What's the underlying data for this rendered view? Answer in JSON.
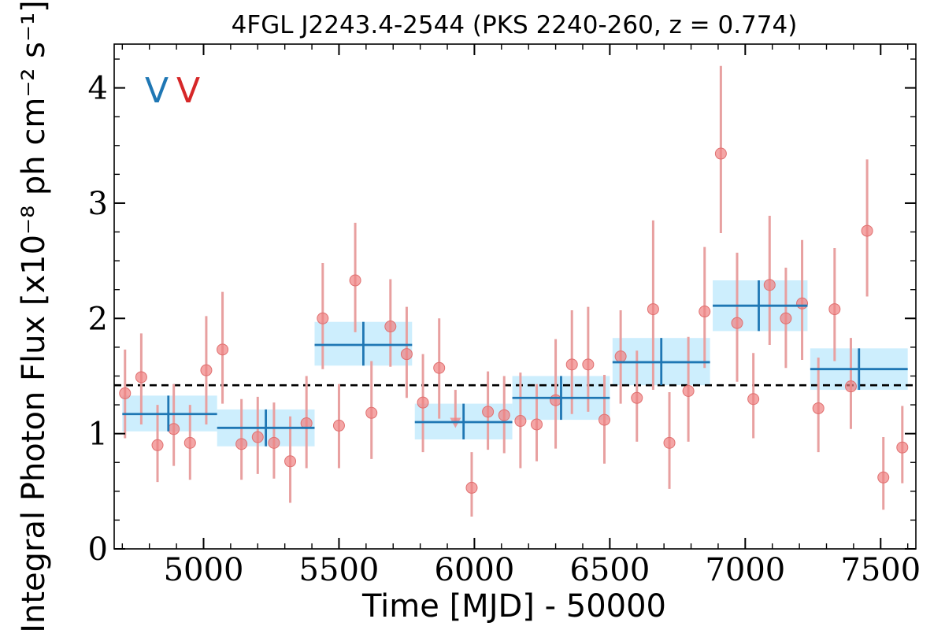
{
  "chart_data": {
    "type": "scatter",
    "title": "4FGL J2243.4-2544 (PKS 2240-260, z = 0.774)",
    "xlabel": "Time [MJD] - 50000",
    "ylabel": "Integral Photon Flux [x10⁻⁸ ph cm⁻² s⁻¹]",
    "xlim": [
      4670,
      7630
    ],
    "ylim": [
      0,
      4.38
    ],
    "x_ticks": [
      5000,
      5500,
      6000,
      6500,
      7000,
      7500
    ],
    "x_tick_labels": [
      "5000",
      "5500",
      "6000",
      "6500",
      "7000",
      "7500"
    ],
    "y_ticks": [
      0,
      1,
      2,
      3,
      4
    ],
    "y_tick_labels": [
      "0",
      "1",
      "2",
      "3",
      "4"
    ],
    "legend": [
      {
        "label": "V",
        "color": "#1f77b4"
      },
      {
        "label": "V",
        "color": "#d62728"
      }
    ],
    "mean_flux": 1.42,
    "series": [
      {
        "color": "#1f77b4",
        "band_color": "#cdeefd",
        "points": [
          {
            "x": 4870,
            "x_lo": 4700,
            "x_hi": 5050,
            "y": 1.17,
            "y_lo": 1.02,
            "y_hi": 1.33
          },
          {
            "x": 5230,
            "x_lo": 5050,
            "x_hi": 5410,
            "y": 1.05,
            "y_lo": 0.89,
            "y_hi": 1.21
          },
          {
            "x": 5590,
            "x_lo": 5410,
            "x_hi": 5770,
            "y": 1.77,
            "y_lo": 1.59,
            "y_hi": 1.97
          },
          {
            "x": 5960,
            "x_lo": 5780,
            "x_hi": 6140,
            "y": 1.1,
            "y_lo": 0.95,
            "y_hi": 1.26
          },
          {
            "x": 6320,
            "x_lo": 6140,
            "x_hi": 6500,
            "y": 1.31,
            "y_lo": 1.12,
            "y_hi": 1.5
          },
          {
            "x": 6690,
            "x_lo": 6510,
            "x_hi": 6870,
            "y": 1.62,
            "y_lo": 1.42,
            "y_hi": 1.83
          },
          {
            "x": 7050,
            "x_lo": 6880,
            "x_hi": 7230,
            "y": 2.11,
            "y_lo": 1.89,
            "y_hi": 2.33
          },
          {
            "x": 7420,
            "x_lo": 7240,
            "x_hi": 7600,
            "y": 1.56,
            "y_lo": 1.38,
            "y_hi": 1.74
          }
        ]
      },
      {
        "color": "#f08080",
        "errbar_color": "#e8a0a0",
        "points": [
          {
            "x": 4710,
            "y": 1.35,
            "y_lo": 0.96,
            "y_hi": 1.73
          },
          {
            "x": 4770,
            "y": 1.49,
            "y_lo": 1.08,
            "y_hi": 1.87
          },
          {
            "x": 4830,
            "y": 0.9,
            "y_lo": 0.58,
            "y_hi": 1.25
          },
          {
            "x": 4890,
            "y": 1.04,
            "y_lo": 0.72,
            "y_hi": 1.43
          },
          {
            "x": 4950,
            "y": 0.92,
            "y_lo": 0.6,
            "y_hi": 1.25
          },
          {
            "x": 5010,
            "y": 1.55,
            "y_lo": 1.08,
            "y_hi": 2.02
          },
          {
            "x": 5070,
            "y": 1.73,
            "y_lo": 1.26,
            "y_hi": 2.23
          },
          {
            "x": 5140,
            "y": 0.91,
            "y_lo": 0.6,
            "y_hi": 1.3
          },
          {
            "x": 5200,
            "y": 0.97,
            "y_lo": 0.65,
            "y_hi": 1.32
          },
          {
            "x": 5260,
            "y": 0.92,
            "y_lo": 0.61,
            "y_hi": 1.27
          },
          {
            "x": 5320,
            "y": 0.76,
            "y_lo": 0.4,
            "y_hi": 1.15
          },
          {
            "x": 5380,
            "y": 1.09,
            "y_lo": 0.7,
            "y_hi": 1.5
          },
          {
            "x": 5440,
            "y": 2.0,
            "y_lo": 1.56,
            "y_hi": 2.48
          },
          {
            "x": 5500,
            "y": 1.07,
            "y_lo": 0.7,
            "y_hi": 1.43
          },
          {
            "x": 5560,
            "y": 2.33,
            "y_lo": 1.88,
            "y_hi": 2.83
          },
          {
            "x": 5620,
            "y": 1.18,
            "y_lo": 0.78,
            "y_hi": 1.63
          },
          {
            "x": 5690,
            "y": 1.93,
            "y_lo": 1.58,
            "y_hi": 2.34
          },
          {
            "x": 5750,
            "y": 1.69,
            "y_lo": 1.31,
            "y_hi": 2.1
          },
          {
            "x": 5810,
            "y": 1.27,
            "y_lo": 0.84,
            "y_hi": 1.69
          },
          {
            "x": 5870,
            "y": 1.57,
            "y_lo": 1.13,
            "y_hi": 2.0
          },
          {
            "x": 5930,
            "y": 1.09,
            "y_lo": null,
            "y_hi": 1.38,
            "upper_limit": true
          },
          {
            "x": 5990,
            "y": 0.53,
            "y_lo": 0.28,
            "y_hi": 0.84
          },
          {
            "x": 6050,
            "y": 1.19,
            "y_lo": 0.86,
            "y_hi": 1.54
          },
          {
            "x": 6110,
            "y": 1.16,
            "y_lo": 0.83,
            "y_hi": 1.5
          },
          {
            "x": 6170,
            "y": 1.11,
            "y_lo": 0.7,
            "y_hi": 1.53
          },
          {
            "x": 6230,
            "y": 1.08,
            "y_lo": 0.76,
            "y_hi": 1.43
          },
          {
            "x": 6300,
            "y": 1.29,
            "y_lo": 0.87,
            "y_hi": 1.82
          },
          {
            "x": 6360,
            "y": 1.6,
            "y_lo": 1.17,
            "y_hi": 2.07
          },
          {
            "x": 6420,
            "y": 1.6,
            "y_lo": 1.19,
            "y_hi": 2.1
          },
          {
            "x": 6480,
            "y": 1.12,
            "y_lo": 0.74,
            "y_hi": 1.51
          },
          {
            "x": 6540,
            "y": 1.67,
            "y_lo": 1.26,
            "y_hi": 2.07
          },
          {
            "x": 6600,
            "y": 1.31,
            "y_lo": 0.93,
            "y_hi": 1.72
          },
          {
            "x": 6660,
            "y": 2.08,
            "y_lo": 1.38,
            "y_hi": 2.85
          },
          {
            "x": 6720,
            "y": 0.92,
            "y_lo": 0.52,
            "y_hi": 1.36
          },
          {
            "x": 6790,
            "y": 1.37,
            "y_lo": 0.93,
            "y_hi": 1.84
          },
          {
            "x": 6850,
            "y": 2.06,
            "y_lo": 1.57,
            "y_hi": 2.62
          },
          {
            "x": 6910,
            "y": 3.43,
            "y_lo": 2.74,
            "y_hi": 4.19
          },
          {
            "x": 6970,
            "y": 1.96,
            "y_lo": 1.45,
            "y_hi": 2.57
          },
          {
            "x": 7030,
            "y": 1.3,
            "y_lo": 0.96,
            "y_hi": 1.7
          },
          {
            "x": 7090,
            "y": 2.29,
            "y_lo": 1.77,
            "y_hi": 2.89
          },
          {
            "x": 7150,
            "y": 2.0,
            "y_lo": 1.57,
            "y_hi": 2.44
          },
          {
            "x": 7210,
            "y": 2.13,
            "y_lo": 1.64,
            "y_hi": 2.68
          },
          {
            "x": 7270,
            "y": 1.22,
            "y_lo": 0.84,
            "y_hi": 1.66
          },
          {
            "x": 7330,
            "y": 2.08,
            "y_lo": 1.63,
            "y_hi": 2.61
          },
          {
            "x": 7390,
            "y": 1.41,
            "y_lo": 1.04,
            "y_hi": 1.83
          },
          {
            "x": 7450,
            "y": 2.76,
            "y_lo": 2.19,
            "y_hi": 3.38
          },
          {
            "x": 7510,
            "y": 0.62,
            "y_lo": 0.34,
            "y_hi": 0.97
          },
          {
            "x": 7580,
            "y": 0.88,
            "y_lo": 0.57,
            "y_hi": 1.24
          }
        ]
      }
    ]
  }
}
